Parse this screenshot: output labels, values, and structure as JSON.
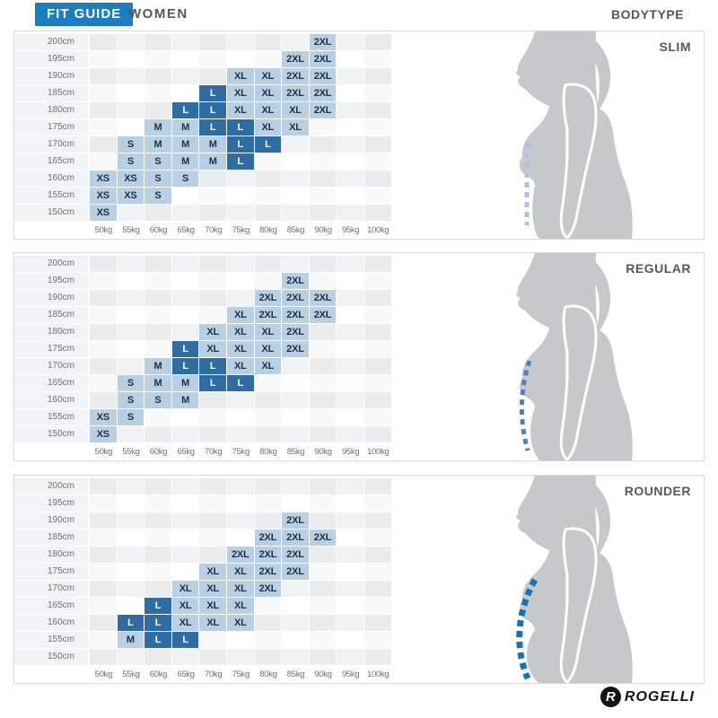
{
  "header": {
    "tab": "FIT GUIDE",
    "category": "WOMEN",
    "right_label": "BODYTYPE"
  },
  "colors": {
    "accent_blue": "#1b7dc1",
    "cell_light": "#b9cfe4",
    "cell_dark": "#2e6da4",
    "silhouette": "#c7c8ca",
    "dash": [
      "#a9c5e3",
      "#4f81c2",
      "#0e76b8"
    ]
  },
  "logo": {
    "monogram": "R",
    "brand": "ROGELLI"
  },
  "chart_data": [
    {
      "type": "heatmap",
      "title": "SLIM",
      "bodytype": "SLIM",
      "xlabel": "weight (kg)",
      "ylabel": "height (cm)",
      "columns": [
        "50kg",
        "55kg",
        "60kg",
        "65kg",
        "70kg",
        "75kg",
        "80kg",
        "85kg",
        "90kg",
        "95kg",
        "100kg"
      ],
      "rows": [
        "200cm",
        "195cm",
        "190cm",
        "185cm",
        "180cm",
        "175cm",
        "170cm",
        "165cm",
        "160cm",
        "155cm",
        "150cm"
      ],
      "cells": [
        {
          "height": "200cm",
          "weight": "90kg",
          "size": "2XL",
          "style": "light"
        },
        {
          "height": "195cm",
          "weight": "85kg",
          "size": "2XL",
          "style": "light"
        },
        {
          "height": "195cm",
          "weight": "90kg",
          "size": "2XL",
          "style": "light"
        },
        {
          "height": "190cm",
          "weight": "75kg",
          "size": "XL",
          "style": "light"
        },
        {
          "height": "190cm",
          "weight": "80kg",
          "size": "XL",
          "style": "light"
        },
        {
          "height": "190cm",
          "weight": "85kg",
          "size": "2XL",
          "style": "light"
        },
        {
          "height": "190cm",
          "weight": "90kg",
          "size": "2XL",
          "style": "light"
        },
        {
          "height": "185cm",
          "weight": "70kg",
          "size": "L",
          "style": "dark"
        },
        {
          "height": "185cm",
          "weight": "75kg",
          "size": "XL",
          "style": "light"
        },
        {
          "height": "185cm",
          "weight": "80kg",
          "size": "XL",
          "style": "light"
        },
        {
          "height": "185cm",
          "weight": "85kg",
          "size": "2XL",
          "style": "light"
        },
        {
          "height": "185cm",
          "weight": "90kg",
          "size": "2XL",
          "style": "light"
        },
        {
          "height": "180cm",
          "weight": "65kg",
          "size": "L",
          "style": "dark"
        },
        {
          "height": "180cm",
          "weight": "70kg",
          "size": "L",
          "style": "dark"
        },
        {
          "height": "180cm",
          "weight": "75kg",
          "size": "XL",
          "style": "light"
        },
        {
          "height": "180cm",
          "weight": "80kg",
          "size": "XL",
          "style": "light"
        },
        {
          "height": "180cm",
          "weight": "85kg",
          "size": "XL",
          "style": "light"
        },
        {
          "height": "180cm",
          "weight": "90kg",
          "size": "2XL",
          "style": "light"
        },
        {
          "height": "175cm",
          "weight": "60kg",
          "size": "M",
          "style": "light"
        },
        {
          "height": "175cm",
          "weight": "65kg",
          "size": "M",
          "style": "light"
        },
        {
          "height": "175cm",
          "weight": "70kg",
          "size": "L",
          "style": "dark"
        },
        {
          "height": "175cm",
          "weight": "75kg",
          "size": "L",
          "style": "dark"
        },
        {
          "height": "175cm",
          "weight": "80kg",
          "size": "XL",
          "style": "light"
        },
        {
          "height": "175cm",
          "weight": "85kg",
          "size": "XL",
          "style": "light"
        },
        {
          "height": "170cm",
          "weight": "55kg",
          "size": "S",
          "style": "light"
        },
        {
          "height": "170cm",
          "weight": "60kg",
          "size": "M",
          "style": "light"
        },
        {
          "height": "170cm",
          "weight": "65kg",
          "size": "M",
          "style": "light"
        },
        {
          "height": "170cm",
          "weight": "70kg",
          "size": "M",
          "style": "light"
        },
        {
          "height": "170cm",
          "weight": "75kg",
          "size": "L",
          "style": "dark"
        },
        {
          "height": "170cm",
          "weight": "80kg",
          "size": "L",
          "style": "dark"
        },
        {
          "height": "165cm",
          "weight": "55kg",
          "size": "S",
          "style": "light"
        },
        {
          "height": "165cm",
          "weight": "60kg",
          "size": "S",
          "style": "light"
        },
        {
          "height": "165cm",
          "weight": "65kg",
          "size": "M",
          "style": "light"
        },
        {
          "height": "165cm",
          "weight": "70kg",
          "size": "M",
          "style": "light"
        },
        {
          "height": "165cm",
          "weight": "75kg",
          "size": "L",
          "style": "dark"
        },
        {
          "height": "160cm",
          "weight": "50kg",
          "size": "XS",
          "style": "light"
        },
        {
          "height": "160cm",
          "weight": "55kg",
          "size": "XS",
          "style": "light"
        },
        {
          "height": "160cm",
          "weight": "60kg",
          "size": "S",
          "style": "light"
        },
        {
          "height": "160cm",
          "weight": "65kg",
          "size": "S",
          "style": "light"
        },
        {
          "height": "155cm",
          "weight": "50kg",
          "size": "XS",
          "style": "light"
        },
        {
          "height": "155cm",
          "weight": "55kg",
          "size": "XS",
          "style": "light"
        },
        {
          "height": "155cm",
          "weight": "60kg",
          "size": "S",
          "style": "light"
        },
        {
          "height": "150cm",
          "weight": "50kg",
          "size": "XS",
          "style": "light"
        }
      ]
    },
    {
      "type": "heatmap",
      "title": "REGULAR",
      "bodytype": "REGULAR",
      "xlabel": "weight (kg)",
      "ylabel": "height (cm)",
      "columns": [
        "50kg",
        "55kg",
        "60kg",
        "65kg",
        "70kg",
        "75kg",
        "80kg",
        "85kg",
        "90kg",
        "95kg",
        "100kg"
      ],
      "rows": [
        "200cm",
        "195cm",
        "190cm",
        "185cm",
        "180cm",
        "175cm",
        "170cm",
        "165cm",
        "160cm",
        "155cm",
        "150cm"
      ],
      "cells": [
        {
          "height": "195cm",
          "weight": "85kg",
          "size": "2XL",
          "style": "light"
        },
        {
          "height": "190cm",
          "weight": "80kg",
          "size": "2XL",
          "style": "light"
        },
        {
          "height": "190cm",
          "weight": "85kg",
          "size": "2XL",
          "style": "light"
        },
        {
          "height": "190cm",
          "weight": "90kg",
          "size": "2XL",
          "style": "light"
        },
        {
          "height": "185cm",
          "weight": "75kg",
          "size": "XL",
          "style": "light"
        },
        {
          "height": "185cm",
          "weight": "80kg",
          "size": "2XL",
          "style": "light"
        },
        {
          "height": "185cm",
          "weight": "85kg",
          "size": "2XL",
          "style": "light"
        },
        {
          "height": "185cm",
          "weight": "90kg",
          "size": "2XL",
          "style": "light"
        },
        {
          "height": "180cm",
          "weight": "70kg",
          "size": "XL",
          "style": "light"
        },
        {
          "height": "180cm",
          "weight": "75kg",
          "size": "XL",
          "style": "light"
        },
        {
          "height": "180cm",
          "weight": "80kg",
          "size": "XL",
          "style": "light"
        },
        {
          "height": "180cm",
          "weight": "85kg",
          "size": "2XL",
          "style": "light"
        },
        {
          "height": "175cm",
          "weight": "65kg",
          "size": "L",
          "style": "dark"
        },
        {
          "height": "175cm",
          "weight": "70kg",
          "size": "XL",
          "style": "light"
        },
        {
          "height": "175cm",
          "weight": "75kg",
          "size": "XL",
          "style": "light"
        },
        {
          "height": "175cm",
          "weight": "80kg",
          "size": "XL",
          "style": "light"
        },
        {
          "height": "175cm",
          "weight": "85kg",
          "size": "2XL",
          "style": "light"
        },
        {
          "height": "170cm",
          "weight": "60kg",
          "size": "M",
          "style": "light"
        },
        {
          "height": "170cm",
          "weight": "65kg",
          "size": "L",
          "style": "dark"
        },
        {
          "height": "170cm",
          "weight": "70kg",
          "size": "L",
          "style": "dark"
        },
        {
          "height": "170cm",
          "weight": "75kg",
          "size": "XL",
          "style": "light"
        },
        {
          "height": "170cm",
          "weight": "80kg",
          "size": "XL",
          "style": "light"
        },
        {
          "height": "165cm",
          "weight": "55kg",
          "size": "S",
          "style": "light"
        },
        {
          "height": "165cm",
          "weight": "60kg",
          "size": "M",
          "style": "light"
        },
        {
          "height": "165cm",
          "weight": "65kg",
          "size": "M",
          "style": "light"
        },
        {
          "height": "165cm",
          "weight": "70kg",
          "size": "L",
          "style": "dark"
        },
        {
          "height": "165cm",
          "weight": "75kg",
          "size": "L",
          "style": "dark"
        },
        {
          "height": "160cm",
          "weight": "55kg",
          "size": "S",
          "style": "light"
        },
        {
          "height": "160cm",
          "weight": "60kg",
          "size": "S",
          "style": "light"
        },
        {
          "height": "160cm",
          "weight": "65kg",
          "size": "M",
          "style": "light"
        },
        {
          "height": "155cm",
          "weight": "50kg",
          "size": "XS",
          "style": "light"
        },
        {
          "height": "155cm",
          "weight": "55kg",
          "size": "S",
          "style": "light"
        },
        {
          "height": "150cm",
          "weight": "50kg",
          "size": "XS",
          "style": "light"
        }
      ]
    },
    {
      "type": "heatmap",
      "title": "ROUNDER",
      "bodytype": "ROUNDER",
      "xlabel": "weight (kg)",
      "ylabel": "height (cm)",
      "columns": [
        "50kg",
        "55kg",
        "60kg",
        "65kg",
        "70kg",
        "75kg",
        "80kg",
        "85kg",
        "90kg",
        "95kg",
        "100kg"
      ],
      "rows": [
        "200cm",
        "195cm",
        "190cm",
        "185cm",
        "180cm",
        "175cm",
        "170cm",
        "165cm",
        "160cm",
        "155cm",
        "150cm"
      ],
      "cells": [
        {
          "height": "190cm",
          "weight": "85kg",
          "size": "2XL",
          "style": "light"
        },
        {
          "height": "185cm",
          "weight": "80kg",
          "size": "2XL",
          "style": "light"
        },
        {
          "height": "185cm",
          "weight": "85kg",
          "size": "2XL",
          "style": "light"
        },
        {
          "height": "185cm",
          "weight": "90kg",
          "size": "2XL",
          "style": "light"
        },
        {
          "height": "180cm",
          "weight": "75kg",
          "size": "2XL",
          "style": "light"
        },
        {
          "height": "180cm",
          "weight": "80kg",
          "size": "2XL",
          "style": "light"
        },
        {
          "height": "180cm",
          "weight": "85kg",
          "size": "2XL",
          "style": "light"
        },
        {
          "height": "175cm",
          "weight": "70kg",
          "size": "XL",
          "style": "light"
        },
        {
          "height": "175cm",
          "weight": "75kg",
          "size": "XL",
          "style": "light"
        },
        {
          "height": "175cm",
          "weight": "80kg",
          "size": "2XL",
          "style": "light"
        },
        {
          "height": "175cm",
          "weight": "85kg",
          "size": "2XL",
          "style": "light"
        },
        {
          "height": "170cm",
          "weight": "65kg",
          "size": "XL",
          "style": "light"
        },
        {
          "height": "170cm",
          "weight": "70kg",
          "size": "XL",
          "style": "light"
        },
        {
          "height": "170cm",
          "weight": "75kg",
          "size": "XL",
          "style": "light"
        },
        {
          "height": "170cm",
          "weight": "80kg",
          "size": "2XL",
          "style": "light"
        },
        {
          "height": "165cm",
          "weight": "60kg",
          "size": "L",
          "style": "dark"
        },
        {
          "height": "165cm",
          "weight": "65kg",
          "size": "XL",
          "style": "light"
        },
        {
          "height": "165cm",
          "weight": "70kg",
          "size": "XL",
          "style": "light"
        },
        {
          "height": "165cm",
          "weight": "75kg",
          "size": "XL",
          "style": "light"
        },
        {
          "height": "160cm",
          "weight": "55kg",
          "size": "L",
          "style": "dark"
        },
        {
          "height": "160cm",
          "weight": "60kg",
          "size": "L",
          "style": "dark"
        },
        {
          "height": "160cm",
          "weight": "65kg",
          "size": "XL",
          "style": "light"
        },
        {
          "height": "160cm",
          "weight": "70kg",
          "size": "XL",
          "style": "light"
        },
        {
          "height": "160cm",
          "weight": "75kg",
          "size": "XL",
          "style": "light"
        },
        {
          "height": "155cm",
          "weight": "55kg",
          "size": "M",
          "style": "light"
        },
        {
          "height": "155cm",
          "weight": "60kg",
          "size": "L",
          "style": "dark"
        },
        {
          "height": "155cm",
          "weight": "65kg",
          "size": "L",
          "style": "dark"
        }
      ]
    }
  ]
}
